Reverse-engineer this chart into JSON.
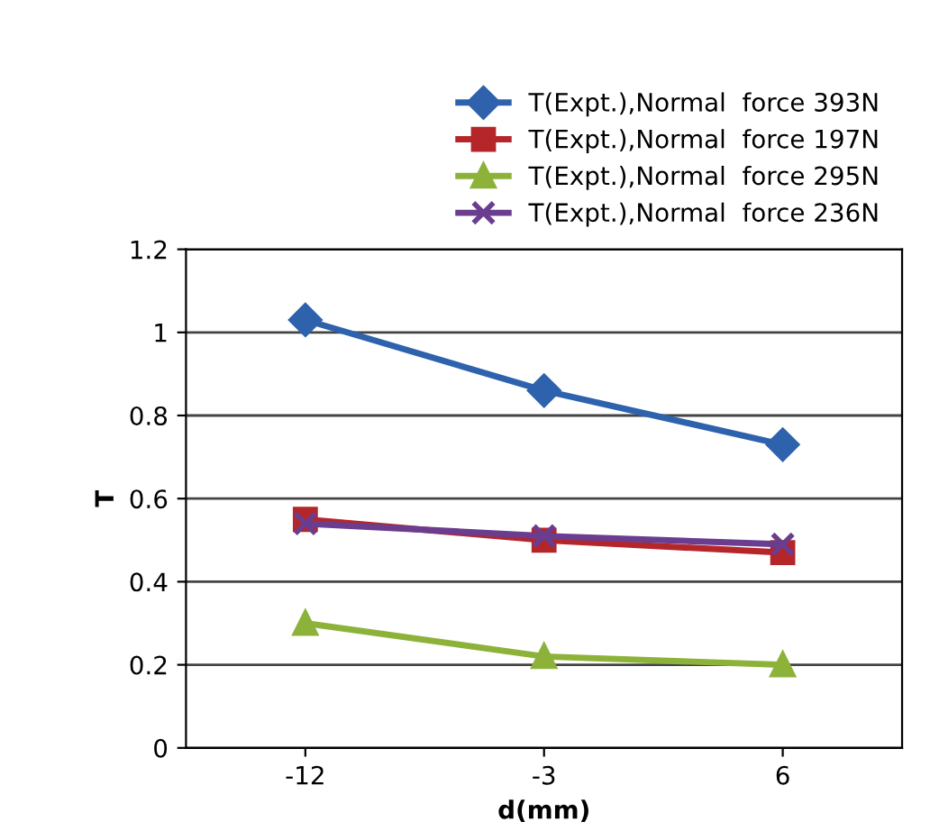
{
  "chart_data": {
    "type": "line",
    "xlabel": "d(mm)",
    "ylabel": "T",
    "categories": [
      "-12",
      "-3",
      "6"
    ],
    "series": [
      {
        "name": "T(Expt.),Normal  force 393N",
        "color": "#2e62ad",
        "values": [
          1.03,
          0.86,
          0.73
        ],
        "marker": "diamond"
      },
      {
        "name": "T(Expt.),Normal  force 197N",
        "color": "#b5262b",
        "values": [
          0.55,
          0.5,
          0.47
        ],
        "marker": "square"
      },
      {
        "name": "T(Expt.),Normal  force 295N",
        "color": "#8db23a",
        "values": [
          0.3,
          0.22,
          0.2
        ],
        "marker": "triangle"
      },
      {
        "name": "T(Expt.),Normal  force 236N",
        "color": "#6a3d8f",
        "values": [
          0.54,
          0.51,
          0.49
        ],
        "marker": "cross"
      }
    ],
    "ylim": [
      0,
      1.2
    ],
    "yticks": [
      0,
      0.2,
      0.4,
      0.6,
      0.8,
      1,
      1.2
    ],
    "grid": "y",
    "legend": "top right",
    "line_style": "solid"
  }
}
